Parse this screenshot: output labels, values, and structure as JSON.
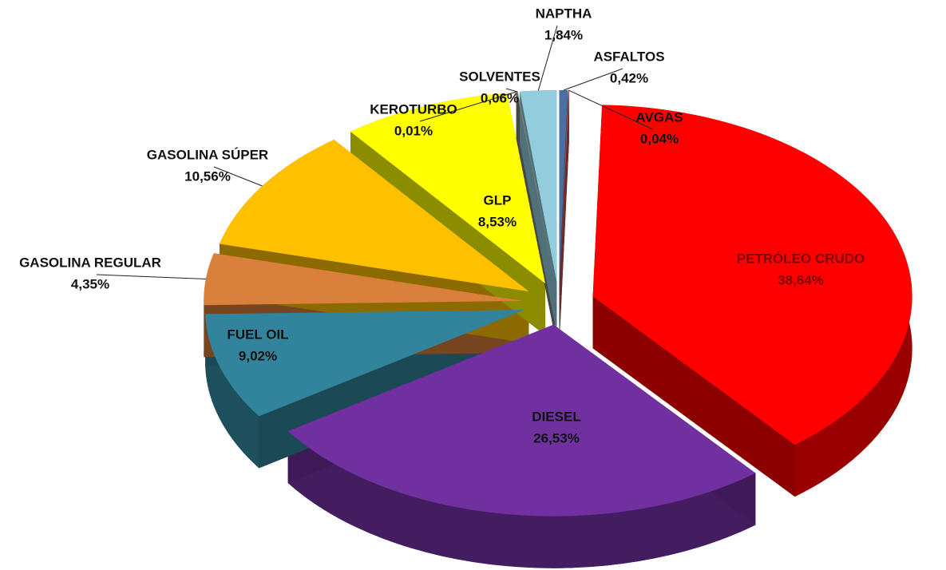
{
  "chart_data": {
    "type": "pie",
    "categories": [
      "ASFALTOS",
      "AVGAS",
      "PETRÓLEO CRUDO",
      "DIESEL",
      "FUEL OIL",
      "GASOLINA REGULAR",
      "GASOLINA SÚPER",
      "GLP",
      "KEROTURBO",
      "SOLVENTES",
      "NAPTHA"
    ],
    "values": [
      0.42,
      0.04,
      38.64,
      26.53,
      9.02,
      4.35,
      10.56,
      8.53,
      0.01,
      0.06,
      1.84
    ],
    "value_labels": [
      "0,42%",
      "0,04%",
      "38,64%",
      "26,53%",
      "9,02%",
      "4,35%",
      "10,56%",
      "8,53%",
      "0,01%",
      "0,06%",
      "1,84%"
    ],
    "colors": [
      "#4a6fa5",
      "#c0504d",
      "#ff0000",
      "#7030a0",
      "#31849b",
      "#d9803a",
      "#ffc000",
      "#ffff00",
      "#4f6228",
      "#7f7f7f",
      "#93cddd"
    ]
  }
}
